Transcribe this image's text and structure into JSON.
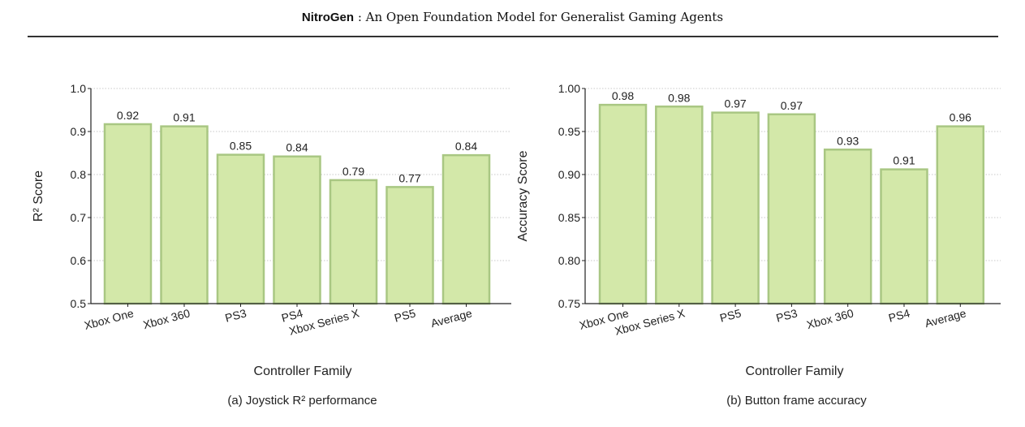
{
  "header": {
    "name": "NitroGen",
    "sep": " : ",
    "rest": "An Open Foundation Model for Generalist Gaming Agents"
  },
  "colors": {
    "bar_fill": "#d3e8a9",
    "bar_edge": "#a9c783",
    "axis": "#222222",
    "grid": "#c8c8c8"
  },
  "chart_data": [
    {
      "type": "bar",
      "caption": "(a) Joystick R² performance",
      "xlabel": "Controller Family",
      "ylabel": "R² Score",
      "categories": [
        "Xbox One",
        "Xbox 360",
        "PS3",
        "PS4",
        "Xbox Series X",
        "PS5",
        "Average"
      ],
      "values": [
        0.917,
        0.912,
        0.846,
        0.842,
        0.787,
        0.771,
        0.845
      ],
      "value_labels": [
        "0.92",
        "0.91",
        "0.85",
        "0.84",
        "0.79",
        "0.77",
        "0.84"
      ],
      "ylim": [
        0.5,
        1.0
      ],
      "yticks": [
        0.5,
        0.6,
        0.7,
        0.8,
        0.9,
        1.0
      ],
      "ytick_labels": [
        "0.5",
        "0.6",
        "0.7",
        "0.8",
        "0.9",
        "1.0"
      ],
      "grid": true
    },
    {
      "type": "bar",
      "caption": "(b) Button frame accuracy",
      "xlabel": "Controller Family",
      "ylabel": "Accuracy Score",
      "categories": [
        "Xbox One",
        "Xbox Series X",
        "PS5",
        "PS3",
        "Xbox 360",
        "PS4",
        "Average"
      ],
      "values": [
        0.981,
        0.979,
        0.972,
        0.97,
        0.929,
        0.906,
        0.956
      ],
      "value_labels": [
        "0.98",
        "0.98",
        "0.97",
        "0.97",
        "0.93",
        "0.91",
        "0.96"
      ],
      "ylim": [
        0.75,
        1.0
      ],
      "yticks": [
        0.75,
        0.8,
        0.85,
        0.9,
        0.95,
        1.0
      ],
      "ytick_labels": [
        "0.75",
        "0.80",
        "0.85",
        "0.90",
        "0.95",
        "1.00"
      ],
      "grid": true
    }
  ]
}
